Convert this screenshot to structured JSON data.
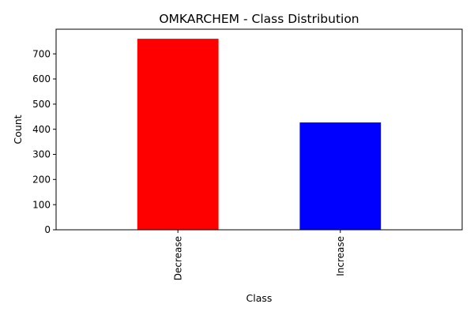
{
  "chart_data": {
    "type": "bar",
    "title": "OMKARCHEM - Class Distribution",
    "xlabel": "Class",
    "ylabel": "Count",
    "categories": [
      "Decrease",
      "Increase"
    ],
    "values": [
      760,
      427
    ],
    "colors": [
      "#ff0000",
      "#0000ff"
    ],
    "ylim": [
      0,
      798
    ],
    "yticks": [
      0,
      100,
      200,
      300,
      400,
      500,
      600,
      700
    ],
    "grid": false,
    "legend": "none",
    "xtick_rotation": "vertical"
  }
}
